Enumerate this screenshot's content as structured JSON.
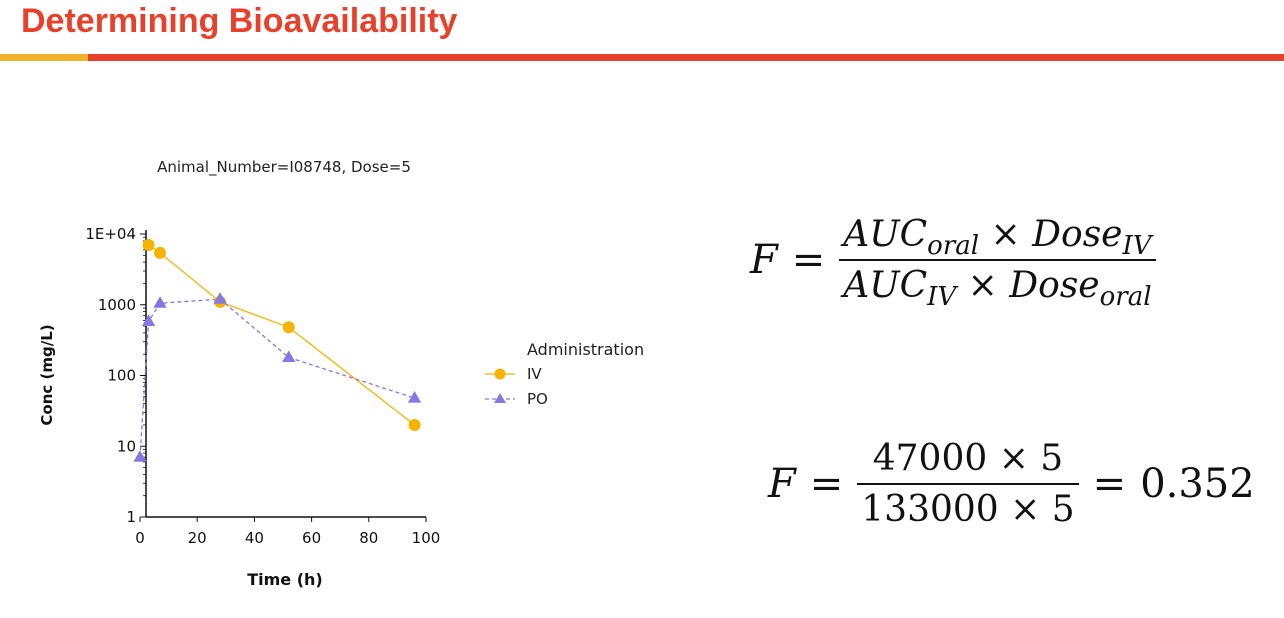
{
  "slide": {
    "title": "Determining Bioavailability",
    "colors": {
      "title": "#e8412b",
      "rule_main": "#e8412b",
      "rule_accent": "#f2b22c"
    }
  },
  "chart_data": {
    "type": "line",
    "title": "Animal_Number=I08748, Dose=5",
    "xlabel": "Time (h)",
    "ylabel": "Conc (mg/L)",
    "xlim": [
      0,
      100
    ],
    "ylim": [
      1,
      10000
    ],
    "yscale": "log",
    "x_ticks": [
      "0",
      "20",
      "40",
      "60",
      "80",
      "100"
    ],
    "y_ticks": [
      "1",
      "10",
      "100",
      "1000",
      "1E+04"
    ],
    "y_tick_values": [
      1,
      10,
      100,
      1000,
      10000
    ],
    "grid": false,
    "legend": {
      "title": "Administration",
      "placement": "right"
    },
    "series": [
      {
        "name": "IV",
        "marker": "circle",
        "line": "solid",
        "color": "#f4b400",
        "points": [
          [
            3,
            7000
          ],
          [
            7,
            5400
          ],
          [
            28,
            1100
          ],
          [
            52,
            480
          ],
          [
            96,
            20
          ]
        ]
      },
      {
        "name": "PO",
        "marker": "triangle",
        "line": "dashed",
        "color": "#8578e0",
        "points": [
          [
            0,
            7
          ],
          [
            3,
            580
          ],
          [
            7,
            1050
          ],
          [
            28,
            1200
          ],
          [
            52,
            180
          ],
          [
            96,
            48
          ]
        ]
      }
    ]
  },
  "equations": {
    "general": {
      "lhs": "F",
      "op": "=",
      "num_a": "AUC",
      "num_a_sub": "oral",
      "num_times": "×",
      "num_b": "Dose",
      "num_b_sub": "IV",
      "den_a": "AUC",
      "den_a_sub": "IV",
      "den_times": "×",
      "den_b": "Dose",
      "den_b_sub": "oral"
    },
    "numeric": {
      "lhs": "F",
      "op": "=",
      "numerator": "47000 × 5",
      "denominator": "133000 × 5",
      "op2": "=",
      "result": "0.352"
    }
  }
}
